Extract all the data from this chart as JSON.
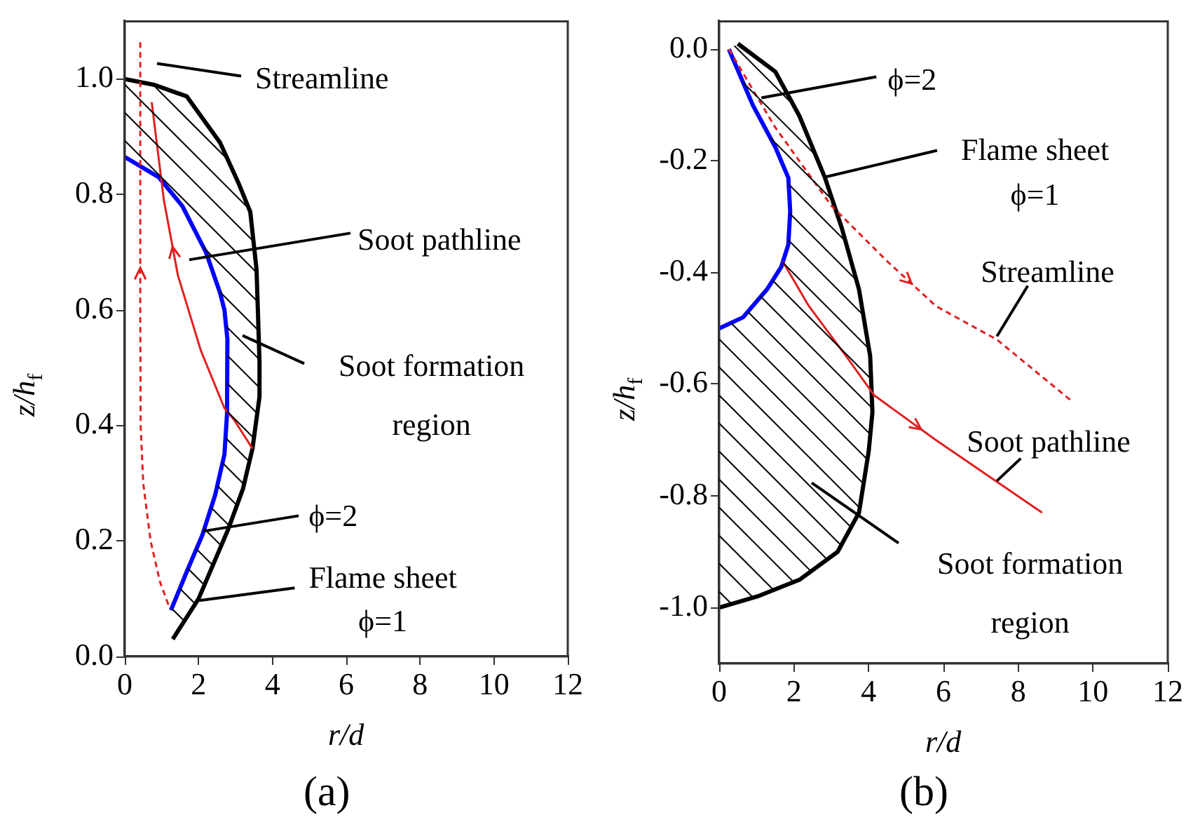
{
  "chart_data": [
    {
      "type": "line",
      "title": "(a)",
      "xlabel": "r/d",
      "ylabel": "z/h$_{f}$",
      "xlim": [
        0,
        12
      ],
      "xticks": [
        0,
        2,
        4,
        6,
        8,
        10,
        12
      ],
      "ylim": [
        0,
        1.1
      ],
      "yticks": [
        {
          "value": 0,
          "label": "0.0"
        },
        {
          "value": 0.2,
          "label": "0.2"
        },
        {
          "value": 0.4,
          "label": "0.4"
        },
        {
          "value": 0.6,
          "label": "0.6"
        },
        {
          "value": 0.8,
          "label": "0.8"
        },
        {
          "value": 1,
          "label": "1.0"
        }
      ],
      "grid": false,
      "legend": false,
      "marker": "none",
      "series": [
        {
          "color": "#000000",
          "x": [
            1.3,
            2.0,
            2.8,
            3.2,
            3.46,
            3.65,
            3.65,
            3.57,
            3.4,
            3.08,
            2.58,
            1.68,
            0.8,
            0
          ],
          "values": [
            0.03,
            0.1,
            0.22,
            0.29,
            0.36,
            0.45,
            0.51,
            0.67,
            0.77,
            0.82,
            0.89,
            0.97,
            0.99,
            1.0
          ]
        },
        {
          "color": "#0000ff",
          "x": [
            1.25,
            1.7,
            2.1,
            2.45,
            2.7,
            2.77,
            2.78,
            2.7,
            2.58,
            2.2,
            1.56,
            0.92,
            0
          ],
          "values": [
            0.08,
            0.15,
            0.21,
            0.28,
            0.35,
            0.42,
            0.55,
            0.6,
            0.63,
            0.7,
            0.78,
            0.83,
            0.865
          ]
        },
        {
          "color": "#e02020",
          "line_style": "dashed",
          "x": [
            1.18,
            0.95,
            0.7,
            0.5,
            0.43,
            0.42,
            0.42
          ],
          "values": [
            0.09,
            0.13,
            0.2,
            0.3,
            0.4,
            0.6,
            1.065
          ]
        },
        {
          "color": "#e02020",
          "x": [
            3.46,
            2.96,
            2.7,
            2.06,
            1.44,
            1.06,
            0.73
          ],
          "values": [
            0.36,
            0.41,
            0.43,
            0.53,
            0.66,
            0.79,
            0.96
          ]
        }
      ],
      "annotations": [
        "Streamline",
        "Soot pathline",
        "Soot formation\nregion",
        {
          "text": "ϕ=2",
          "x": 2.13,
          "y": 0.217
        },
        {
          "text": "Flame sheet\nϕ=1",
          "x": 2.02,
          "y": 0.097
        }
      ]
    },
    {
      "type": "line",
      "title": "(b)",
      "xlabel": "r/d",
      "ylabel": "z/h$_{f}$",
      "xlim": [
        0,
        12
      ],
      "xticks": [
        0,
        2,
        4,
        6,
        8,
        10,
        12
      ],
      "ylim": [
        -1.1,
        0.05
      ],
      "yticks": [
        {
          "value": -1,
          "label": "-1.0"
        },
        {
          "value": -0.8,
          "label": "-0.8"
        },
        {
          "value": -0.6,
          "label": "-0.6"
        },
        {
          "value": -0.4,
          "label": "-0.4"
        },
        {
          "value": -0.2,
          "label": "-0.2"
        },
        {
          "value": 0,
          "label": "0.0"
        }
      ],
      "grid": false,
      "legend": false,
      "marker": "none",
      "series": [
        {
          "color": "#000000",
          "x": [
            0.5,
            1.5,
            2.15,
            2.83,
            3.28,
            3.74,
            4.04,
            4.1,
            4.0,
            3.74,
            3.17,
            2.15,
            1.02,
            0
          ],
          "values": [
            0.01,
            -0.04,
            -0.12,
            -0.23,
            -0.32,
            -0.43,
            -0.55,
            -0.65,
            -0.72,
            -0.83,
            -0.9,
            -0.95,
            -0.98,
            -1.0
          ]
        },
        {
          "color": "#0000ff",
          "x": [
            0.26,
            0.9,
            1.5,
            1.85,
            1.9,
            1.85,
            1.66,
            1.28,
            0.64,
            0
          ],
          "values": [
            0,
            -0.1,
            -0.175,
            -0.23,
            -0.29,
            -0.35,
            -0.39,
            -0.43,
            -0.48,
            -0.5
          ]
        },
        {
          "color": "#e02020",
          "line_style": "dashed",
          "x": [
            0.26,
            1.5,
            3.0,
            4.5,
            5.8,
            7.43,
            9.43
          ],
          "values": [
            0,
            -0.14,
            -0.28,
            -0.38,
            -0.46,
            -0.52,
            -0.63
          ]
        },
        {
          "color": "#e02020",
          "x": [
            1.7,
            2.4,
            3.4,
            4.15,
            5.8,
            8.64
          ],
          "values": [
            -0.38,
            -0.46,
            -0.55,
            -0.62,
            -0.7,
            -0.83
          ]
        }
      ],
      "annotations": [
        {
          "text": "ϕ=2",
          "x": 1.13,
          "y": -0.087
        },
        {
          "text": "Flame sheet\nϕ=1",
          "x": 2.83,
          "y": -0.229
        },
        {
          "text": "Streamline",
          "x": 7.43,
          "y": -0.514
        },
        {
          "text": "Soot pathline",
          "x": 7.43,
          "y": -0.773
        },
        "Soot formation\nregion"
      ]
    }
  ]
}
